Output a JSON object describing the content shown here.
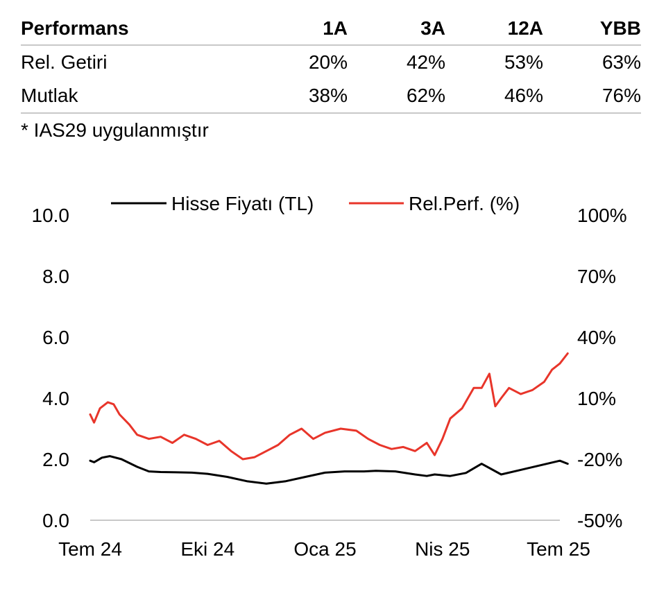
{
  "table": {
    "headers": [
      "Performans",
      "1A",
      "3A",
      "12A",
      "YBB"
    ],
    "rows": [
      [
        "Rel. Getiri",
        "20%",
        "42%",
        "53%",
        "63%"
      ],
      [
        "Mutlak",
        "38%",
        "62%",
        "46%",
        "76%"
      ]
    ]
  },
  "footnote": "* IAS29 uygulanmıştır",
  "colors": {
    "price": "#000000",
    "relperf": "#e8352a",
    "axis": "#c8c8c8"
  },
  "chart_data": {
    "type": "line",
    "x_ticks": [
      "Tem 24",
      "Eki 24",
      "Oca 25",
      "Nis 25",
      "Tem 25"
    ],
    "y_left": {
      "range": [
        0,
        10
      ],
      "ticks": [
        "0.0",
        "2.0",
        "4.0",
        "6.0",
        "8.0",
        "10.0"
      ]
    },
    "y_right": {
      "range": [
        -50,
        100
      ],
      "ticks": [
        "-50%",
        "-20%",
        "10%",
        "40%",
        "70%",
        "100%"
      ]
    },
    "legend_position": "top",
    "grid": false,
    "series": [
      {
        "name": "Hisse Fiyatı (TL)",
        "axis": "left",
        "x": [
          0,
          0.1,
          0.3,
          0.5,
          0.8,
          1.2,
          1.5,
          1.8,
          2.2,
          2.6,
          3.0,
          3.5,
          4.0,
          4.5,
          5.0,
          5.5,
          6.0,
          6.5,
          7.0,
          7.3,
          7.8,
          8.3,
          8.6,
          8.8,
          9.2,
          9.6,
          10.0,
          10.5,
          11.0,
          11.5,
          12.0,
          12.2
        ],
        "values": [
          1.95,
          1.9,
          2.05,
          2.1,
          2.0,
          1.75,
          1.6,
          1.58,
          1.57,
          1.56,
          1.52,
          1.42,
          1.28,
          1.2,
          1.28,
          1.42,
          1.56,
          1.6,
          1.6,
          1.62,
          1.6,
          1.5,
          1.45,
          1.5,
          1.45,
          1.55,
          1.85,
          1.5,
          1.65,
          1.8,
          1.95,
          1.85
        ]
      },
      {
        "name": "Rel.Perf. (%)",
        "axis": "right",
        "x": [
          0,
          0.1,
          0.25,
          0.45,
          0.6,
          0.75,
          1.0,
          1.2,
          1.5,
          1.8,
          2.1,
          2.4,
          2.7,
          3.0,
          3.3,
          3.6,
          3.9,
          4.2,
          4.5,
          4.8,
          5.1,
          5.4,
          5.7,
          6.0,
          6.4,
          6.8,
          7.1,
          7.4,
          7.7,
          8.0,
          8.3,
          8.6,
          8.8,
          9.0,
          9.2,
          9.5,
          9.8,
          10.0,
          10.2,
          10.35,
          10.5,
          10.7,
          11.0,
          11.3,
          11.6,
          11.8,
          12.0,
          12.2
        ],
        "values": [
          2,
          -2,
          5,
          8,
          7,
          2,
          -3,
          -8,
          -10,
          -9,
          -12,
          -8,
          -10,
          -13,
          -11,
          -16,
          -20,
          -19,
          -16,
          -13,
          -8,
          -5,
          -10,
          -7,
          -5,
          -6,
          -10,
          -13,
          -15,
          -14,
          -16,
          -12,
          -18,
          -10,
          0,
          5,
          15,
          15,
          22,
          6,
          10,
          15,
          12,
          14,
          18,
          24,
          27,
          32
        ]
      }
    ]
  }
}
